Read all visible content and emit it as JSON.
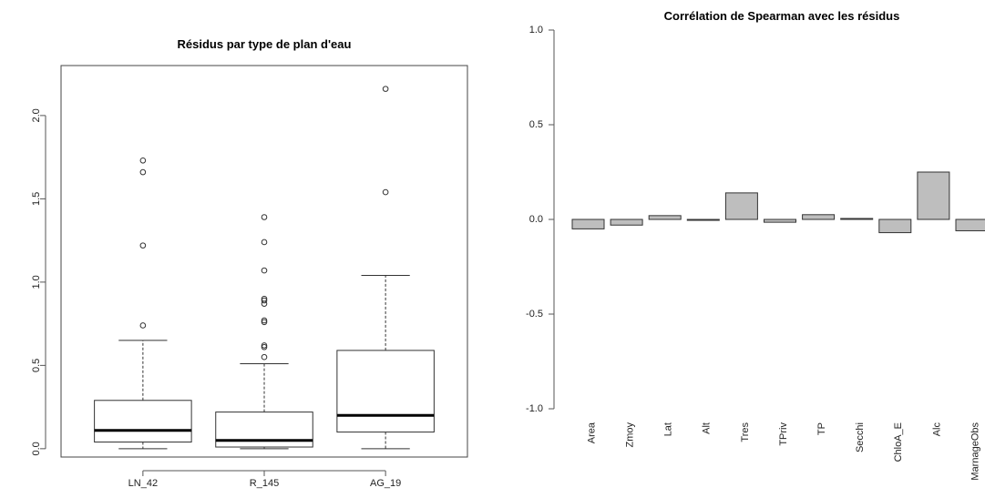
{
  "chart_data": [
    {
      "type": "box",
      "title": "Résidus par type de plan d'eau",
      "xlabel": "",
      "ylabel": "",
      "ylim": [
        -0.05,
        2.3
      ],
      "yticks": [
        "0.0",
        "0.5",
        "1.0",
        "1.5",
        "2.0"
      ],
      "categories": [
        "LN_42",
        "R_145",
        "AG_19"
      ],
      "boxes": [
        {
          "category": "LN_42",
          "whisker_low": 0.0,
          "q1": 0.04,
          "median": 0.11,
          "q3": 0.29,
          "whisker_high": 0.65,
          "outliers": [
            0.74,
            1.22,
            1.66,
            1.73
          ]
        },
        {
          "category": "R_145",
          "whisker_low": 0.0,
          "q1": 0.01,
          "median": 0.05,
          "q3": 0.22,
          "whisker_high": 0.51,
          "outliers": [
            0.55,
            0.61,
            0.62,
            0.76,
            0.77,
            0.87,
            0.89,
            0.9,
            1.07,
            1.24,
            1.39
          ]
        },
        {
          "category": "AG_19",
          "whisker_low": 0.0,
          "q1": 0.1,
          "median": 0.2,
          "q3": 0.59,
          "whisker_high": 1.04,
          "outliers": [
            1.54,
            2.16
          ]
        }
      ]
    },
    {
      "type": "bar",
      "title": "Corrélation de Spearman avec les résidus",
      "xlabel": "",
      "ylabel": "",
      "ylim": [
        -1.0,
        1.0
      ],
      "yticks": [
        "-1.0",
        "-0.5",
        "0.0",
        "0.5",
        "1.0"
      ],
      "categories": [
        "Area",
        "Zmoy",
        "Lat",
        "Alt",
        "Tres",
        "TPriv",
        "TP",
        "Secchi",
        "ChloA_E",
        "Alc",
        "MarnageObs"
      ],
      "values": [
        -0.05,
        -0.03,
        0.02,
        -0.005,
        0.14,
        -0.015,
        0.025,
        0.005,
        -0.07,
        0.25,
        -0.06
      ]
    }
  ]
}
